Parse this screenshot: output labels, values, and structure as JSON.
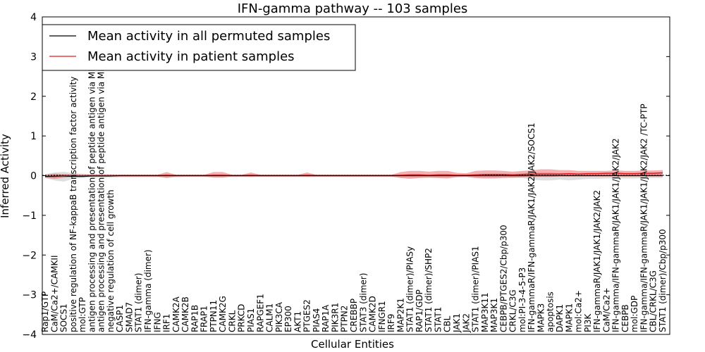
{
  "chart_data": {
    "type": "line",
    "title": "IFN-gamma pathway -- 103 samples",
    "xlabel": "Cellular Entities",
    "ylabel": "Inferred Activity",
    "ylim": [
      -4,
      4
    ],
    "yticks": [
      "4",
      "3",
      "2",
      "1",
      "0",
      "−1",
      "−2",
      "−3",
      "−4"
    ],
    "legend_position": "top-left",
    "legend": [
      {
        "name": "Mean activity in all permuted samples",
        "color": "#000000"
      },
      {
        "name": "Mean activity in patient samples",
        "color": "#e31a1c"
      }
    ],
    "categories": [
      "Rap1/GTP",
      "CaM/Ca2+/CAMKII",
      "SOCS1",
      "positive regulation of NF-kappaB transcription factor activity",
      "mol:GTP",
      "antigen processing and presentation of peptide antigen via MHC class I",
      "antigen processing and presentation of peptide antigen via MHC class II",
      "negative regulation of cell growth",
      "CASP1",
      "SMAD7",
      "STAT1 (dimer)",
      "IFN-gamma (dimer)",
      "IFNG",
      "IRF1",
      "CAMK2A",
      "CAMK2B",
      "RAP1B",
      "FRAP1",
      "PTPN11",
      "CAMK2G",
      "CRKL",
      "PRKCD",
      "PIAS1",
      "RAPGEF1",
      "CALM1",
      "PIK3CA",
      "EP300",
      "AKT1",
      "PTGES2",
      "PIAS4",
      "RAP1A",
      "PIK3R1",
      "PTPN2",
      "CREBBP",
      "STAT3 (dimer)",
      "CAMK2D",
      "IFNGR1",
      "IRF9",
      "MAP2K1",
      "STAT1 (dimer)/PIASy",
      "RAP1/GDP",
      "STAT1 (dimer)/SHP2",
      "STAT1",
      "CBL",
      "JAK1",
      "JAK2",
      "STAT1 (dimer)/PIAS1",
      "MAP3K11",
      "MAP3K1",
      "CEBPB/PTGES2/Cbp/p300",
      "CRKL/C3G",
      "mol:PI-3-4-5-P3",
      "IFN-gammaR/IFN-gammaR/JAK1/JAK2/JAK2/SOCS1",
      "MAPK3",
      "apoptosis",
      "DAPK1",
      "MAPK1",
      "mol:Ca2+",
      "PI3K",
      "IFN-gammaR/JAK1/JAK1/JAK2/JAK2",
      "CaM/Ca2+",
      "IFN-gamma/IFN-gammaR/JAK1/JAK1/JAK2/JAK2",
      "CEBPB",
      "mol:GDP",
      "IFN-gamma/IFN-gammaR/JAK1/JAK1/JAK2/JAK2 /TC-PTP",
      "CBL/CRKL/C3G",
      "STAT1 (dimer)/Cbp/p300"
    ],
    "series": [
      {
        "name": "Mean activity in all permuted samples",
        "values": [
          -0.02,
          -0.01,
          -0.01,
          -0.02,
          -0.02,
          -0.01,
          -0.01,
          -0.01,
          0.0,
          0.0,
          0.0,
          0.0,
          0.0,
          0.0,
          0.0,
          0.0,
          0.0,
          0.0,
          0.0,
          0.0,
          0.0,
          0.0,
          0.0,
          0.0,
          0.0,
          0.0,
          0.0,
          0.0,
          0.0,
          0.0,
          0.0,
          0.0,
          0.0,
          0.0,
          0.0,
          0.0,
          0.0,
          0.0,
          0.0,
          0.0,
          0.0,
          0.0,
          0.0,
          0.0,
          0.0,
          0.0,
          0.0,
          0.0,
          0.0,
          0.0,
          0.0,
          0.0,
          0.0,
          0.0,
          0.0,
          0.0,
          0.0,
          0.0,
          0.0,
          0.0,
          0.0,
          0.0,
          0.0,
          0.0,
          0.0,
          0.0,
          0.0
        ],
        "band_low": [
          -0.06,
          -0.12,
          -0.15,
          -0.08,
          -0.06,
          -0.05,
          -0.05,
          -0.05,
          -0.04,
          -0.04,
          -0.04,
          -0.04,
          -0.04,
          -0.04,
          -0.04,
          -0.03,
          -0.03,
          -0.03,
          -0.03,
          -0.03,
          -0.03,
          -0.03,
          -0.03,
          -0.03,
          -0.03,
          -0.03,
          -0.03,
          -0.03,
          -0.03,
          -0.03,
          -0.03,
          -0.03,
          -0.03,
          -0.03,
          -0.03,
          -0.03,
          -0.03,
          -0.03,
          -0.04,
          -0.04,
          -0.04,
          -0.04,
          -0.04,
          -0.04,
          -0.03,
          -0.03,
          -0.04,
          -0.04,
          -0.04,
          -0.03,
          -0.05,
          -0.06,
          -0.1,
          -0.12,
          -0.12,
          -0.1,
          -0.12,
          -0.1,
          -0.08,
          -0.08,
          -0.07,
          -0.07,
          -0.07,
          -0.07,
          -0.06,
          -0.06,
          -0.06
        ],
        "band_high": [
          0.04,
          0.08,
          0.1,
          0.06,
          0.05,
          0.04,
          0.04,
          0.04,
          0.03,
          0.03,
          0.03,
          0.03,
          0.03,
          0.03,
          0.03,
          0.03,
          0.03,
          0.03,
          0.03,
          0.03,
          0.03,
          0.03,
          0.03,
          0.03,
          0.03,
          0.03,
          0.03,
          0.03,
          0.03,
          0.03,
          0.03,
          0.03,
          0.03,
          0.03,
          0.03,
          0.03,
          0.03,
          0.03,
          0.03,
          0.03,
          0.03,
          0.03,
          0.03,
          0.03,
          0.03,
          0.03,
          0.03,
          0.03,
          0.03,
          0.03,
          0.04,
          0.05,
          0.08,
          0.08,
          0.08,
          0.06,
          0.06,
          0.05,
          0.05,
          0.05,
          0.05,
          0.05,
          0.05,
          0.05,
          0.05,
          0.05,
          0.05
        ]
      },
      {
        "name": "Mean activity in patient samples",
        "values": [
          -0.02,
          -0.02,
          0.0,
          0.0,
          0.0,
          0.0,
          0.0,
          0.0,
          0.0,
          0.0,
          0.0,
          0.0,
          0.0,
          0.01,
          0.0,
          0.0,
          0.0,
          0.0,
          0.01,
          0.01,
          0.0,
          0.0,
          0.01,
          0.0,
          0.0,
          0.0,
          0.0,
          0.0,
          0.01,
          0.0,
          0.0,
          0.0,
          0.0,
          0.0,
          0.0,
          0.0,
          0.0,
          0.0,
          0.01,
          0.02,
          0.02,
          0.01,
          0.02,
          0.02,
          0.01,
          0.01,
          0.02,
          0.03,
          0.03,
          0.03,
          0.02,
          0.03,
          0.04,
          0.04,
          0.04,
          0.04,
          0.05,
          0.04,
          0.05,
          0.05,
          0.06,
          0.06,
          0.05,
          0.05,
          0.06,
          0.06,
          0.07
        ],
        "band_low": [
          -0.05,
          -0.08,
          -0.05,
          -0.03,
          -0.02,
          -0.02,
          -0.02,
          -0.02,
          -0.02,
          -0.02,
          -0.02,
          -0.02,
          -0.02,
          -0.06,
          -0.02,
          -0.02,
          -0.02,
          -0.02,
          -0.05,
          -0.05,
          -0.02,
          -0.02,
          -0.03,
          -0.02,
          -0.02,
          -0.02,
          -0.02,
          -0.02,
          -0.03,
          -0.02,
          -0.02,
          -0.02,
          -0.02,
          -0.02,
          -0.02,
          -0.02,
          -0.02,
          -0.02,
          -0.06,
          -0.08,
          -0.06,
          -0.05,
          -0.06,
          -0.07,
          -0.04,
          -0.03,
          -0.06,
          -0.07,
          -0.07,
          -0.06,
          -0.05,
          -0.04,
          -0.03,
          -0.03,
          -0.03,
          -0.02,
          -0.02,
          -0.02,
          -0.02,
          -0.02,
          -0.02,
          -0.02,
          -0.02,
          -0.02,
          -0.02,
          -0.02,
          -0.02
        ],
        "band_high": [
          0.02,
          0.05,
          0.04,
          0.03,
          0.02,
          0.02,
          0.02,
          0.02,
          0.02,
          0.02,
          0.02,
          0.02,
          0.02,
          0.09,
          0.02,
          0.02,
          0.02,
          0.02,
          0.09,
          0.09,
          0.02,
          0.02,
          0.08,
          0.02,
          0.02,
          0.02,
          0.02,
          0.02,
          0.08,
          0.02,
          0.02,
          0.02,
          0.02,
          0.02,
          0.02,
          0.02,
          0.02,
          0.02,
          0.09,
          0.12,
          0.12,
          0.1,
          0.12,
          0.12,
          0.07,
          0.06,
          0.12,
          0.13,
          0.13,
          0.12,
          0.1,
          0.12,
          0.13,
          0.16,
          0.16,
          0.14,
          0.14,
          0.12,
          0.12,
          0.12,
          0.12,
          0.13,
          0.12,
          0.12,
          0.13,
          0.13,
          0.14
        ]
      }
    ]
  }
}
